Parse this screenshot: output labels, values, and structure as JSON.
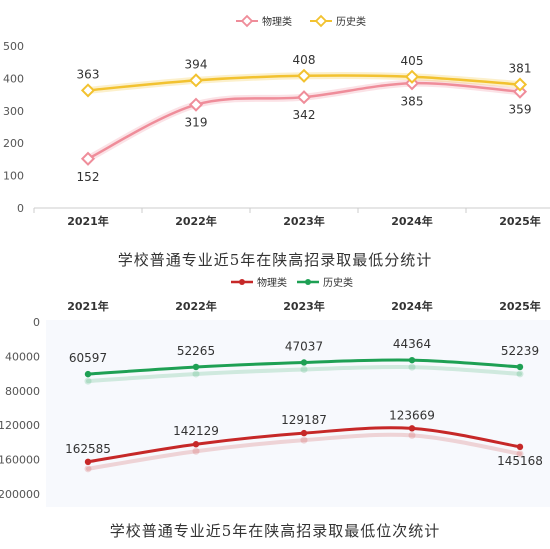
{
  "charts": [
    {
      "caption": "学校普通专业近5年在陕高招录取最低分统计"
    },
    {
      "caption": "学校普通专业近5年在陕高招录取最低位次统计"
    }
  ],
  "colors": {
    "physics_top": "#ef8d9a",
    "history_top": "#f2c230",
    "physics_bottom": "#c62828",
    "history_bottom": "#1ea054"
  },
  "chart_data": [
    {
      "type": "line",
      "categories": [
        "2021年",
        "2022年",
        "2023年",
        "2024年",
        "2025年"
      ],
      "series": [
        {
          "name": "物理类",
          "values": [
            152,
            319,
            342,
            385,
            359
          ]
        },
        {
          "name": "历史类",
          "values": [
            363,
            394,
            408,
            405,
            381
          ]
        }
      ],
      "ylim": [
        0,
        500
      ],
      "yticks": [
        0,
        100,
        200,
        300,
        400,
        500
      ],
      "legend": "top",
      "grid": false
    },
    {
      "type": "line",
      "categories": [
        "2021年",
        "2022年",
        "2023年",
        "2024年",
        "2025年"
      ],
      "series": [
        {
          "name": "物理类",
          "values": [
            162585,
            142129,
            129187,
            123669,
            145168
          ]
        },
        {
          "name": "历史类",
          "values": [
            60597,
            52265,
            47037,
            44364,
            52239
          ]
        }
      ],
      "ylim": [
        0,
        200000
      ],
      "yticks": [
        0,
        40000,
        80000,
        120000,
        160000,
        200000
      ],
      "y_inverted": true,
      "x_axis_position": "top",
      "legend": "top",
      "grid": false
    }
  ]
}
